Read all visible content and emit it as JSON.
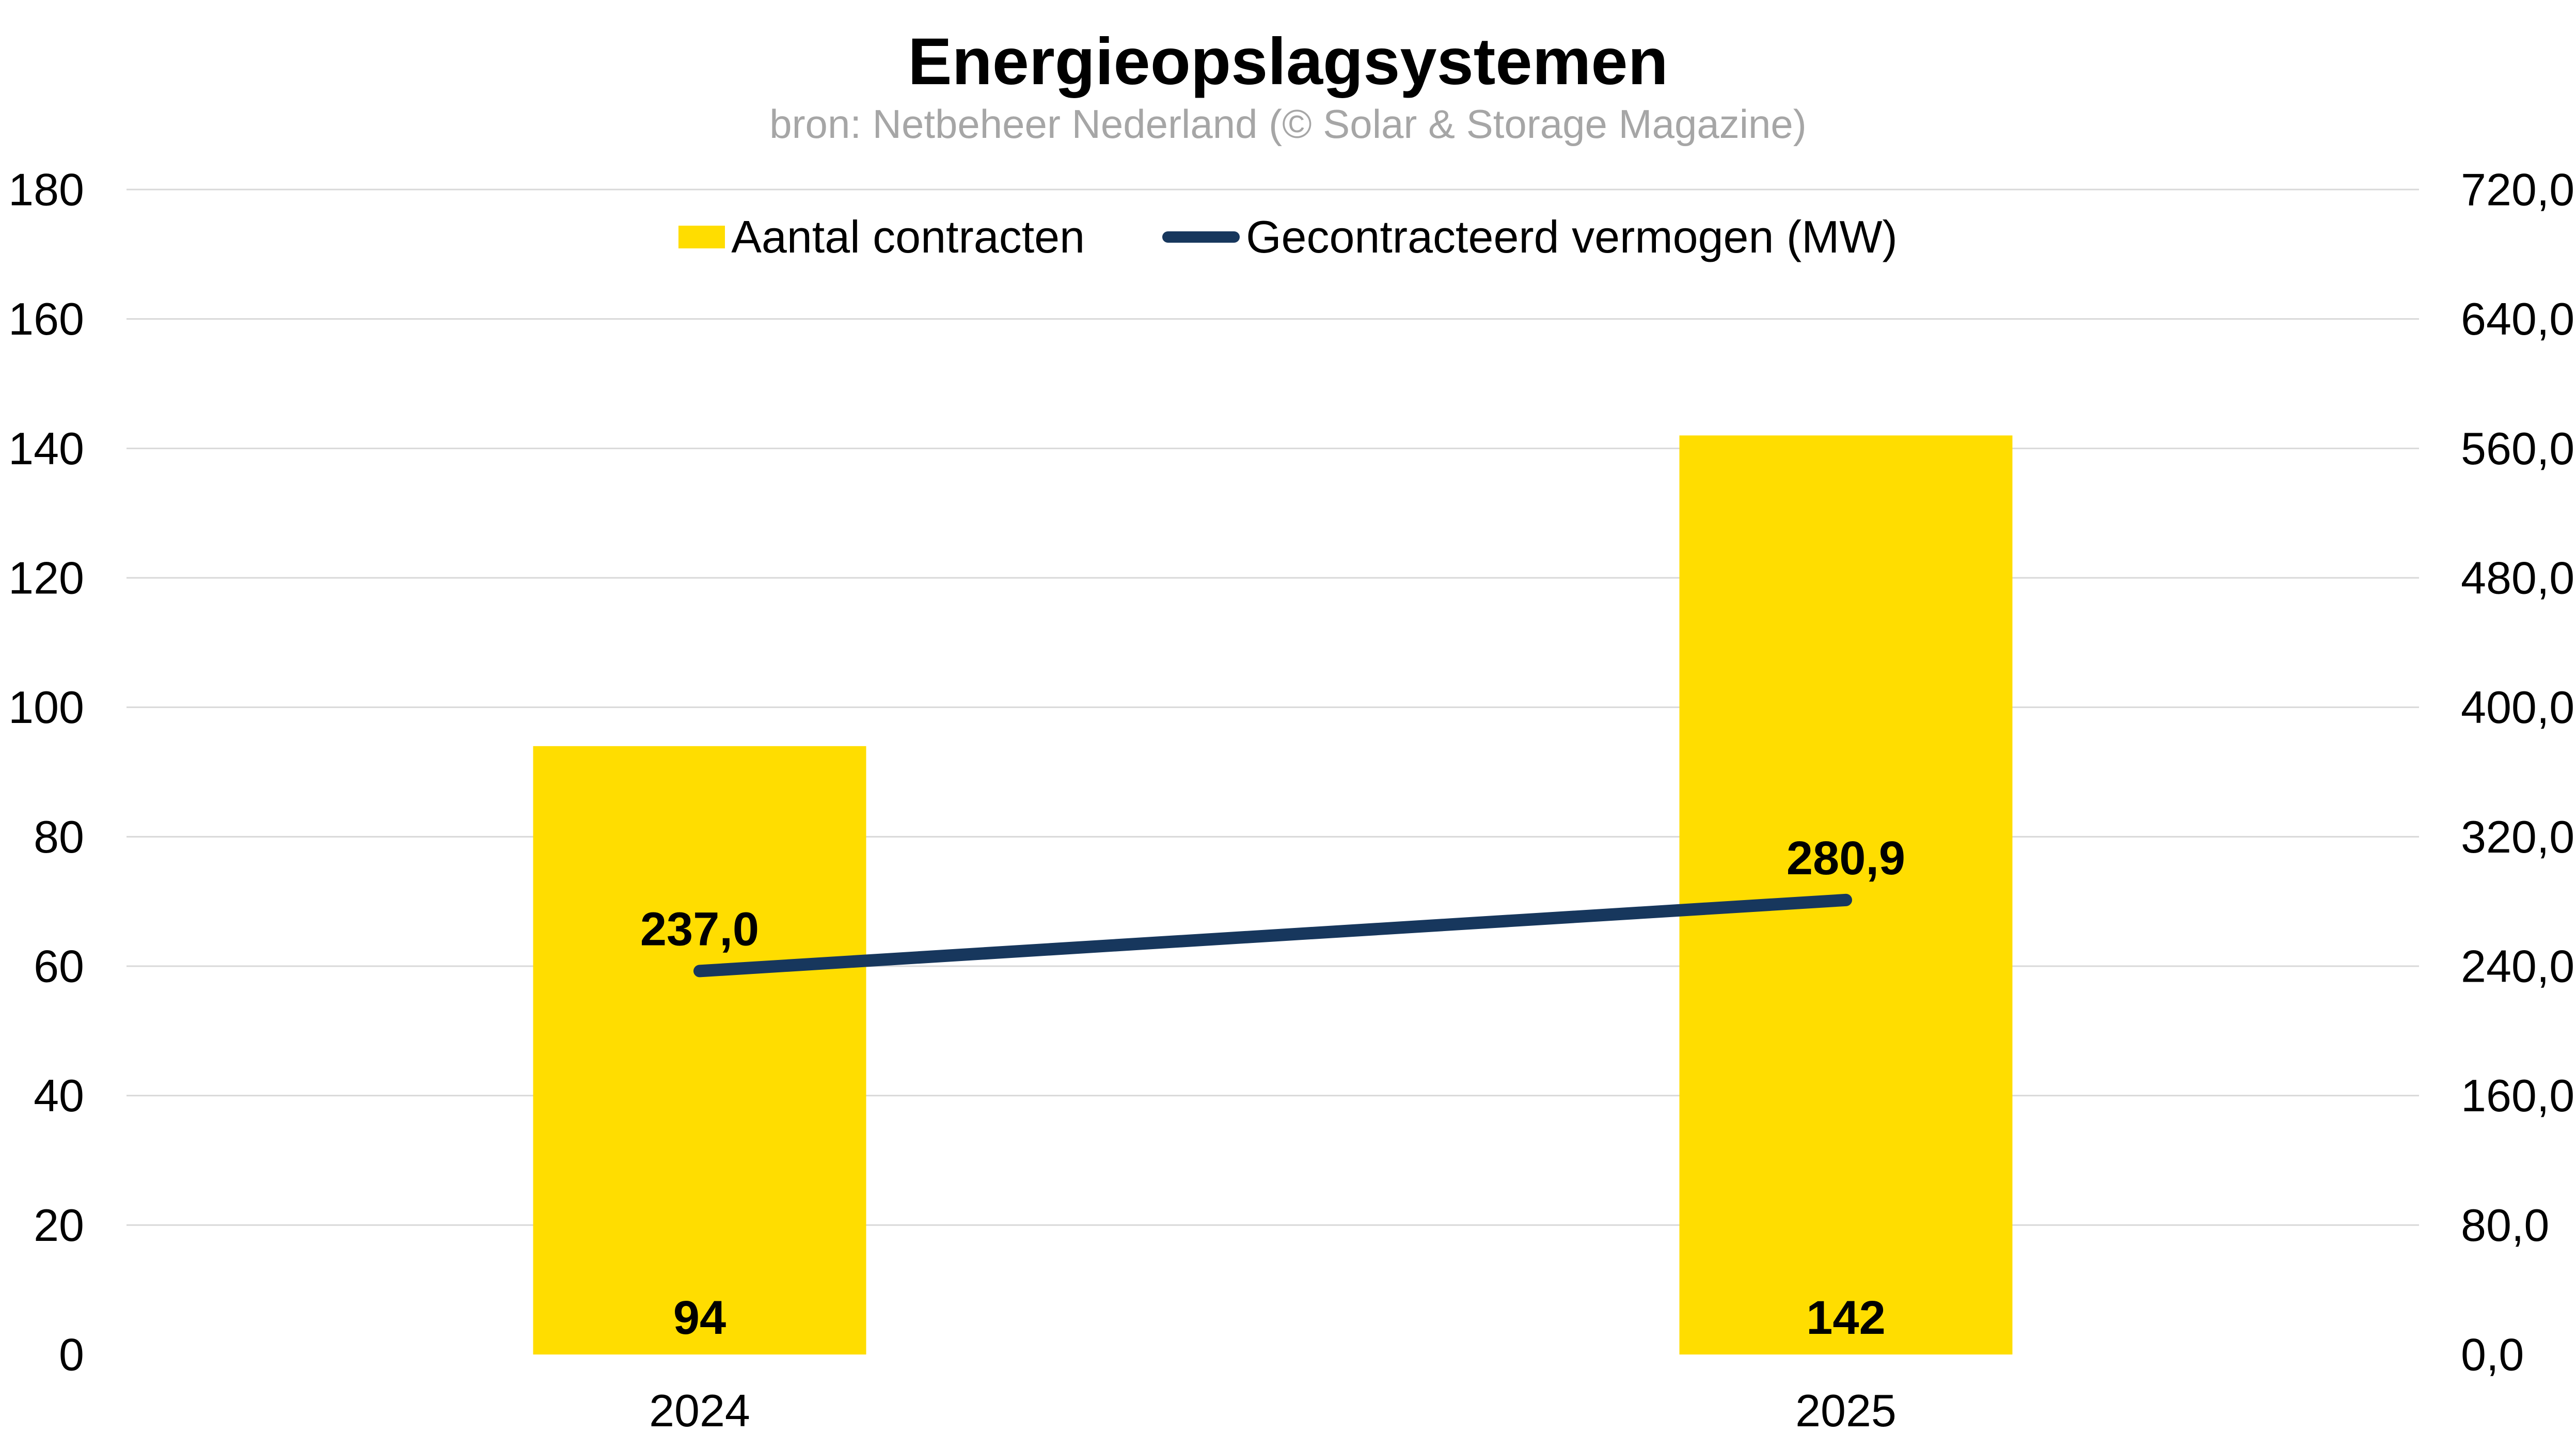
{
  "title": "Energieopslagsystemen",
  "subtitle": "bron: Netbeheer Nederland (© Solar & Storage Magazine)",
  "legend": {
    "items": [
      {
        "label": "Aantal contracten",
        "marker": "bar-swatch",
        "color": "#FFDD00"
      },
      {
        "label": "Gecontracteerd vermogen (MW)",
        "marker": "line-swatch",
        "color": "#17375D"
      }
    ],
    "position": "top-center"
  },
  "chart_data": {
    "type": "bar",
    "subtype": "bar-line-combo",
    "categories": [
      "2024",
      "2025"
    ],
    "series": [
      {
        "name": "Aantal contracten",
        "type": "bar",
        "axis": "left",
        "color": "#FFDD00",
        "values": [
          94,
          142
        ],
        "data_labels": [
          "94",
          "142"
        ]
      },
      {
        "name": "Gecontracteerd vermogen (MW)",
        "type": "line",
        "axis": "right",
        "color": "#17375D",
        "values": [
          237.0,
          280.9
        ],
        "data_labels": [
          "237,0",
          "280,9"
        ]
      }
    ],
    "left_axis": {
      "min": 0,
      "max": 180,
      "step": 20,
      "tick_labels": [
        "180",
        "160",
        "140",
        "120",
        "100",
        "80",
        "60",
        "40",
        "20",
        "0"
      ]
    },
    "right_axis": {
      "min": 0,
      "max": 720,
      "step": 80,
      "tick_labels": [
        "720,0",
        "640,0",
        "560,0",
        "480,0",
        "400,0",
        "320,0",
        "240,0",
        "160,0",
        "80,0",
        "0,0"
      ]
    },
    "grid": true,
    "gridline_color": "#D9D9D9",
    "baseline_gridline": false,
    "title": "Energieopslagsystemen",
    "subtitle": "bron: Netbeheer Nederland (© Solar & Storage Magazine)"
  },
  "colors": {
    "bar": "#FFDD00",
    "line": "#17375D",
    "gridline": "#D9D9D9",
    "subtitle_text": "#A6A6A6",
    "text": "#000000",
    "background": "#FFFFFF"
  }
}
